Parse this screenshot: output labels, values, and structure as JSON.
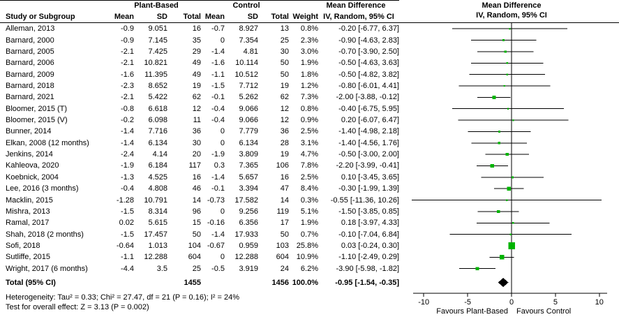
{
  "header": {
    "study_col": "Study or Subgroup",
    "group1": "Plant-Based",
    "group2": "Control",
    "mean": "Mean",
    "sd": "SD",
    "total": "Total",
    "weight": "Weight",
    "md_title": "Mean Difference",
    "md_sub": "IV, Random, 95% CI"
  },
  "chart_data": {
    "type": "forest",
    "effect_measure": "Mean Difference",
    "method": "IV, Random, 95% CI",
    "x_axis": {
      "min": -10,
      "max": 10,
      "ticks": [
        -10,
        -5,
        0,
        5,
        10
      ],
      "favours_left": "Favours Plant-Based",
      "favours_right": "Favours Control"
    },
    "studies": [
      {
        "name": "Alleman, 2013",
        "t_mean": "-0.9",
        "t_sd": "9.051",
        "t_total": "16",
        "c_mean": "-0.7",
        "c_sd": "8.927",
        "c_total": "13",
        "weight": "0.8%",
        "md": -0.2,
        "lo": -6.77,
        "hi": 6.37,
        "ci_text": "-0.20 [-6.77, 6.37]"
      },
      {
        "name": "Barnard, 2000",
        "t_mean": "-0.9",
        "t_sd": "7.145",
        "t_total": "35",
        "c_mean": "0",
        "c_sd": "7.354",
        "c_total": "25",
        "weight": "2.3%",
        "md": -0.9,
        "lo": -4.63,
        "hi": 2.83,
        "ci_text": "-0.90 [-4.63, 2.83]"
      },
      {
        "name": "Barnard, 2005",
        "t_mean": "-2.1",
        "t_sd": "7.425",
        "t_total": "29",
        "c_mean": "-1.4",
        "c_sd": "4.81",
        "c_total": "30",
        "weight": "3.0%",
        "md": -0.7,
        "lo": -3.9,
        "hi": 2.5,
        "ci_text": "-0.70 [-3.90, 2.50]"
      },
      {
        "name": "Barnard, 2006",
        "t_mean": "-2.1",
        "t_sd": "10.821",
        "t_total": "49",
        "c_mean": "-1.6",
        "c_sd": "10.114",
        "c_total": "50",
        "weight": "1.9%",
        "md": -0.5,
        "lo": -4.63,
        "hi": 3.63,
        "ci_text": "-0.50 [-4.63, 3.63]"
      },
      {
        "name": "Barnard, 2009",
        "t_mean": "-1.6",
        "t_sd": "11.395",
        "t_total": "49",
        "c_mean": "-1.1",
        "c_sd": "10.512",
        "c_total": "50",
        "weight": "1.8%",
        "md": -0.5,
        "lo": -4.82,
        "hi": 3.82,
        "ci_text": "-0.50 [-4.82, 3.82]"
      },
      {
        "name": "Barnard, 2018",
        "t_mean": "-2.3",
        "t_sd": "8.652",
        "t_total": "19",
        "c_mean": "-1.5",
        "c_sd": "7.712",
        "c_total": "19",
        "weight": "1.2%",
        "md": -0.8,
        "lo": -6.01,
        "hi": 4.41,
        "ci_text": "-0.80 [-6.01, 4.41]"
      },
      {
        "name": "Barnard, 2021",
        "t_mean": "-2.1",
        "t_sd": "5.422",
        "t_total": "62",
        "c_mean": "-0.1",
        "c_sd": "5.262",
        "c_total": "62",
        "weight": "7.3%",
        "md": -2.0,
        "lo": -3.88,
        "hi": -0.12,
        "ci_text": "-2.00 [-3.88, -0.12]"
      },
      {
        "name": "Bloomer, 2015 (T)",
        "t_mean": "-0.8",
        "t_sd": "6.618",
        "t_total": "12",
        "c_mean": "-0.4",
        "c_sd": "9.066",
        "c_total": "12",
        "weight": "0.8%",
        "md": -0.4,
        "lo": -6.75,
        "hi": 5.95,
        "ci_text": "-0.40 [-6.75, 5.95]"
      },
      {
        "name": "Bloomer, 2015 (V)",
        "t_mean": "-0.2",
        "t_sd": "6.098",
        "t_total": "11",
        "c_mean": "-0.4",
        "c_sd": "9.066",
        "c_total": "12",
        "weight": "0.9%",
        "md": 0.2,
        "lo": -6.07,
        "hi": 6.47,
        "ci_text": "0.20 [-6.07, 6.47]"
      },
      {
        "name": "Bunner, 2014",
        "t_mean": "-1.4",
        "t_sd": "7.716",
        "t_total": "36",
        "c_mean": "0",
        "c_sd": "7.779",
        "c_total": "36",
        "weight": "2.5%",
        "md": -1.4,
        "lo": -4.98,
        "hi": 2.18,
        "ci_text": "-1.40 [-4.98, 2.18]"
      },
      {
        "name": "Elkan, 2008 (12 months)",
        "t_mean": "-1.4",
        "t_sd": "6.134",
        "t_total": "30",
        "c_mean": "0",
        "c_sd": "6.134",
        "c_total": "28",
        "weight": "3.1%",
        "md": -1.4,
        "lo": -4.56,
        "hi": 1.76,
        "ci_text": "-1.40 [-4.56, 1.76]"
      },
      {
        "name": "Jenkins, 2014",
        "t_mean": "-2.4",
        "t_sd": "4.14",
        "t_total": "20",
        "c_mean": "-1.9",
        "c_sd": "3.809",
        "c_total": "19",
        "weight": "4.7%",
        "md": -0.5,
        "lo": -3.0,
        "hi": 2.0,
        "ci_text": "-0.50 [-3.00, 2.00]"
      },
      {
        "name": "Kahleova, 2020",
        "t_mean": "-1.9",
        "t_sd": "6.184",
        "t_total": "117",
        "c_mean": "0.3",
        "c_sd": "7.365",
        "c_total": "106",
        "weight": "7.8%",
        "md": -2.2,
        "lo": -3.99,
        "hi": -0.41,
        "ci_text": "-2.20 [-3.99, -0.41]"
      },
      {
        "name": "Koebnick, 2004",
        "t_mean": "-1.3",
        "t_sd": "4.525",
        "t_total": "16",
        "c_mean": "-1.4",
        "c_sd": "5.657",
        "c_total": "16",
        "weight": "2.5%",
        "md": 0.1,
        "lo": -3.45,
        "hi": 3.65,
        "ci_text": "0.10 [-3.45, 3.65]"
      },
      {
        "name": "Lee, 2016 (3 months)",
        "t_mean": "-0.4",
        "t_sd": "4.808",
        "t_total": "46",
        "c_mean": "-0.1",
        "c_sd": "3.394",
        "c_total": "47",
        "weight": "8.4%",
        "md": -0.3,
        "lo": -1.99,
        "hi": 1.39,
        "ci_text": "-0.30 [-1.99, 1.39]"
      },
      {
        "name": "Macklin, 2015",
        "t_mean": "-1.28",
        "t_sd": "10.791",
        "t_total": "14",
        "c_mean": "-0.73",
        "c_sd": "17.582",
        "c_total": "14",
        "weight": "0.3%",
        "md": -0.55,
        "lo": -11.36,
        "hi": 10.26,
        "ci_text": "-0.55 [-11.36, 10.26]"
      },
      {
        "name": "Mishra, 2013",
        "t_mean": "-1.5",
        "t_sd": "8.314",
        "t_total": "96",
        "c_mean": "0",
        "c_sd": "9.256",
        "c_total": "119",
        "weight": "5.1%",
        "md": -1.5,
        "lo": -3.85,
        "hi": 0.85,
        "ci_text": "-1.50 [-3.85, 0.85]"
      },
      {
        "name": "Ramal, 2017",
        "t_mean": "0.02",
        "t_sd": "5.615",
        "t_total": "15",
        "c_mean": "-0.16",
        "c_sd": "6.356",
        "c_total": "17",
        "weight": "1.9%",
        "md": 0.18,
        "lo": -3.97,
        "hi": 4.33,
        "ci_text": "0.18 [-3.97, 4.33]"
      },
      {
        "name": "Shah, 2018 (2 months)",
        "t_mean": "-1.5",
        "t_sd": "17.457",
        "t_total": "50",
        "c_mean": "-1.4",
        "c_sd": "17.933",
        "c_total": "50",
        "weight": "0.7%",
        "md": -0.1,
        "lo": -7.04,
        "hi": 6.84,
        "ci_text": "-0.10 [-7.04, 6.84]"
      },
      {
        "name": "Sofi, 2018",
        "t_mean": "-0.64",
        "t_sd": "1.013",
        "t_total": "104",
        "c_mean": "-0.67",
        "c_sd": "0.959",
        "c_total": "103",
        "weight": "25.8%",
        "md": 0.03,
        "lo": -0.24,
        "hi": 0.3,
        "ci_text": "0.03 [-0.24, 0.30]"
      },
      {
        "name": "Sutliffe, 2015",
        "t_mean": "-1.1",
        "t_sd": "12.288",
        "t_total": "604",
        "c_mean": "0",
        "c_sd": "12.288",
        "c_total": "604",
        "weight": "10.9%",
        "md": -1.1,
        "lo": -2.49,
        "hi": 0.29,
        "ci_text": "-1.10 [-2.49, 0.29]"
      },
      {
        "name": "Wright, 2017 (6 months)",
        "t_mean": "-4.4",
        "t_sd": "3.5",
        "t_total": "25",
        "c_mean": "-0.5",
        "c_sd": "3.919",
        "c_total": "24",
        "weight": "6.2%",
        "md": -3.9,
        "lo": -5.98,
        "hi": -1.82,
        "ci_text": "-3.90 [-5.98, -1.82]"
      }
    ],
    "total": {
      "label": "Total (95% CI)",
      "t_total": "1455",
      "c_total": "1456",
      "weight": "100.0%",
      "md": -0.95,
      "lo": -1.54,
      "hi": -0.35,
      "ci_text": "-0.95 [-1.54, -0.35]"
    },
    "heterogeneity": "Heterogeneity: Tau² = 0.33; Chi² = 27.47, df = 21 (P = 0.16); I² = 24%",
    "overall_effect": "Test for overall effect: Z = 3.13 (P = 0.002)",
    "colors": {
      "square": "#00b300",
      "diamond": "#000000",
      "line": "#000000",
      "axis": "#000000"
    }
  }
}
